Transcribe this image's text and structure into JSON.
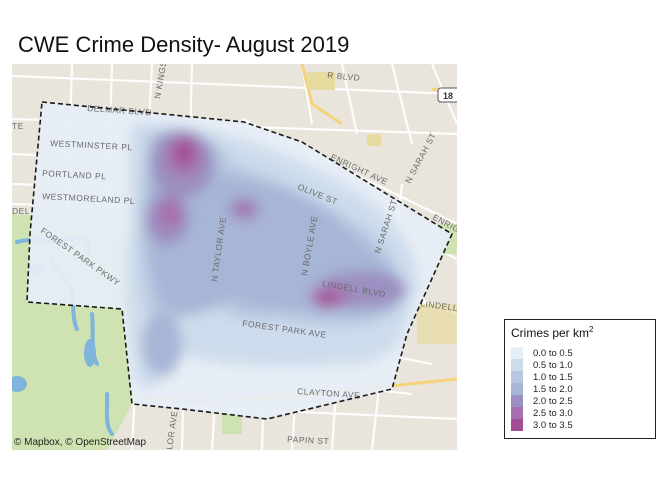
{
  "title": "CWE Crime Density- August 2019",
  "attribution": "© Mapbox, © OpenStreetMap",
  "legend": {
    "title": "Crimes per km",
    "title_sup": "2",
    "items": [
      {
        "label": "0.0 to 0.5",
        "color": "#e6eef6"
      },
      {
        "label": "0.5 to 1.0",
        "color": "#cddcec"
      },
      {
        "label": "1.0 to 1.5",
        "color": "#b6c8e0"
      },
      {
        "label": "1.5 to 2.0",
        "color": "#a7b5d6"
      },
      {
        "label": "2.0 to 2.5",
        "color": "#9c8fc1"
      },
      {
        "label": "2.5 to 3.0",
        "color": "#a86fae"
      },
      {
        "label": "3.0 to 3.5",
        "color": "#a04f93"
      }
    ]
  },
  "map_labels": {
    "westminster": "WESTMINSTER PL",
    "portland": "PORTLAND PL",
    "westmoreland": "WESTMORELAND PL",
    "forest_park_pkwy": "FOREST PARK PKWY",
    "n_kingshighway": "N KINGS",
    "n_taylor": "N TAYLOR AVE",
    "n_boyle": "N BOYLE AVE",
    "n_sarah": "N SARAH ST",
    "n_sarah_top": "N SARAH ST",
    "lindell_blvd": "LINDELL BLVD",
    "lindell_right": "LINDELL",
    "forest_park_ave": "FOREST PARK AVE",
    "clayton_ave": "CLAYTON AVE",
    "papin": "PAPIN ST",
    "enright": "ENRIGHT AVE",
    "olive": "OLIVE ST",
    "delmar": "DELMAR BLVD",
    "enright_right": "ENRIG",
    "delmar_top": "R BLVD",
    "route": "18",
    "taylor_bottom": "LOR AVE",
    "label_left_top": "TE",
    "label_left_mid": "DEL"
  },
  "colors": {
    "base": "#e9e4dc",
    "park": "#cfe3b2",
    "water": "#7fb4dc",
    "boundary": "#1a1a1a"
  }
}
